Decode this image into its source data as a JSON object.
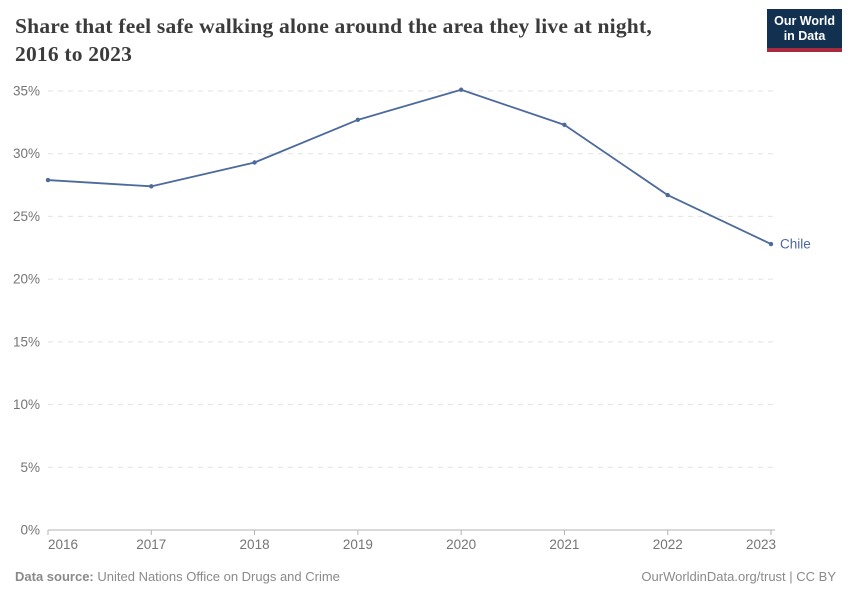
{
  "header": {
    "title_line1": "Share that feel safe walking alone around the area they live at night,",
    "title_line2": "2016 to 2023",
    "logo": {
      "line1": "Our World",
      "line2": "in Data"
    }
  },
  "chart_data": {
    "type": "line",
    "title": "Share that feel safe walking alone around the area they live at night, 2016 to 2023",
    "x": [
      2016,
      2017,
      2018,
      2019,
      2020,
      2021,
      2022,
      2023
    ],
    "xtick_labels": [
      "2016",
      "2017",
      "2018",
      "2019",
      "2020",
      "2021",
      "2022",
      "2023"
    ],
    "series": [
      {
        "name": "Chile",
        "values": [
          27.9,
          27.4,
          29.3,
          32.7,
          35.1,
          32.3,
          26.7,
          22.8
        ],
        "color": "#4c6a9c"
      }
    ],
    "ylim": [
      0,
      35
    ],
    "yticks": [
      0,
      5,
      10,
      15,
      20,
      25,
      30,
      35
    ],
    "ytick_suffix": "%",
    "grid": "horizontal-dashed",
    "legend": "end-of-line entity label"
  },
  "footer": {
    "source_label": "Data source:",
    "source_text": "United Nations Office on Drugs and Crime",
    "attribution": "OurWorldinData.org/trust | CC BY"
  },
  "colors": {
    "line": "#4c6a9c",
    "entity_label": "#4c6a9c",
    "grid": "#e2e2e2",
    "axis": "#b3b3b3",
    "tick_label": "#757575",
    "title": "#3b3b3b",
    "footer_text": "#8a8a8a",
    "logo_bg": "#12304f",
    "logo_accent": "#a82a3f"
  }
}
